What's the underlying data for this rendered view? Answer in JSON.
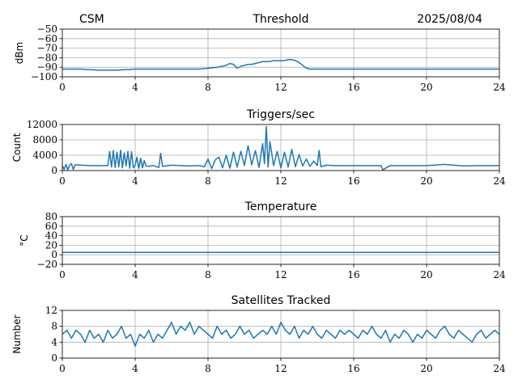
{
  "header": {
    "left_label": "CSM",
    "right_label": "2025/08/04"
  },
  "style": {
    "series_color": "#1f77b4"
  },
  "chart_data": [
    {
      "id": "threshold",
      "type": "line",
      "title": "Threshold",
      "xlabel": "",
      "ylabel": "dBm",
      "xlim": [
        0,
        24
      ],
      "ylim": [
        -100,
        -50
      ],
      "xticks": [
        0,
        4,
        8,
        12,
        16,
        20,
        24
      ],
      "yticks": [
        -100,
        -90,
        -80,
        -70,
        -60,
        -50
      ],
      "ytick_labels": [
        "−100",
        "−90",
        "−80",
        "−70",
        "−60",
        "−50"
      ],
      "grid": true,
      "series": [
        {
          "x": [
            0,
            1,
            2,
            3,
            4,
            5,
            6,
            7,
            7.5,
            8,
            8.5,
            9,
            9.2,
            9.4,
            9.6,
            9.8,
            10,
            10.2,
            10.4,
            10.6,
            10.8,
            11,
            11.2,
            11.4,
            11.6,
            11.8,
            12,
            12.2,
            12.4,
            12.6,
            12.8,
            13,
            13.2,
            13.4,
            13.6,
            14,
            15,
            16,
            17,
            18,
            19,
            20,
            21,
            22,
            23,
            24
          ],
          "y": [
            -92,
            -92,
            -93,
            -93,
            -92,
            -92,
            -92,
            -92,
            -92,
            -91,
            -90,
            -88,
            -86,
            -87,
            -91,
            -89,
            -88,
            -87,
            -87,
            -86,
            -85,
            -84,
            -84,
            -84,
            -83,
            -83,
            -83,
            -83,
            -82,
            -82,
            -83,
            -85,
            -88,
            -91,
            -92,
            -92,
            -92,
            -92,
            -92,
            -92,
            -92,
            -92,
            -92,
            -92,
            -92,
            -92
          ]
        }
      ]
    },
    {
      "id": "triggers",
      "type": "line",
      "title": "Triggers/sec",
      "xlabel": "",
      "ylabel": "Count",
      "xlim": [
        0,
        24
      ],
      "ylim": [
        0,
        12000
      ],
      "xticks": [
        0,
        4,
        8,
        12,
        16,
        20,
        24
      ],
      "yticks": [
        0,
        4000,
        8000,
        12000
      ],
      "ytick_labels": [
        "0",
        "4000",
        "8000",
        "12000"
      ],
      "grid": true,
      "series": [
        {
          "x": [
            0,
            0.1,
            0.2,
            0.3,
            0.4,
            0.5,
            0.6,
            0.7,
            1.5,
            2.5,
            2.6,
            2.7,
            2.8,
            2.9,
            3.0,
            3.1,
            3.2,
            3.3,
            3.4,
            3.5,
            3.6,
            3.7,
            3.8,
            3.9,
            4.0,
            4.1,
            4.2,
            4.3,
            4.4,
            4.5,
            4.6,
            4.7,
            5.0,
            5.3,
            5.4,
            5.5,
            5.8,
            6.0,
            6.5,
            7.0,
            7.5,
            7.8,
            8.0,
            8.2,
            8.4,
            8.6,
            8.8,
            9.0,
            9.2,
            9.4,
            9.6,
            9.8,
            10.0,
            10.2,
            10.4,
            10.6,
            10.8,
            11.0,
            11.1,
            11.2,
            11.3,
            11.4,
            11.6,
            11.8,
            12.0,
            12.2,
            12.4,
            12.6,
            12.8,
            13.0,
            13.2,
            13.4,
            13.6,
            13.8,
            14.0,
            14.1,
            14.2,
            14.5,
            15,
            16,
            17,
            17.5,
            17.6,
            18,
            19,
            20,
            21,
            22,
            23,
            24
          ],
          "y": [
            1300,
            300,
            1600,
            200,
            1400,
            1800,
            300,
            1500,
            1300,
            1300,
            5000,
            900,
            5200,
            800,
            4800,
            1000,
            5300,
            700,
            4600,
            1200,
            5000,
            600,
            4900,
            700,
            1400,
            3500,
            500,
            3200,
            700,
            2600,
            1200,
            1100,
            1300,
            800,
            4500,
            1100,
            1300,
            1400,
            1300,
            1200,
            1300,
            1000,
            3000,
            500,
            2800,
            3500,
            700,
            4000,
            600,
            4800,
            900,
            5000,
            1300,
            6500,
            1500,
            5200,
            800,
            7000,
            1800,
            11500,
            900,
            7500,
            1300,
            5000,
            700,
            4800,
            900,
            5500,
            1000,
            4200,
            1200,
            3000,
            1100,
            2500,
            1300,
            5200,
            1000,
            1400,
            1300,
            1300,
            1300,
            1300,
            200,
            1300,
            1300,
            1300,
            1600,
            1200,
            1300,
            1300
          ]
        }
      ]
    },
    {
      "id": "temperature",
      "type": "line",
      "title": "Temperature",
      "xlabel": "",
      "ylabel": "°C",
      "xlim": [
        0,
        24
      ],
      "ylim": [
        -20,
        80
      ],
      "xticks": [
        0,
        4,
        8,
        12,
        16,
        20,
        24
      ],
      "yticks": [
        -20,
        0,
        20,
        40,
        60,
        80
      ],
      "ytick_labels": [
        "−20",
        "0",
        "20",
        "40",
        "60",
        "80"
      ],
      "grid": true,
      "series": [
        {
          "x": [
            0,
            24
          ],
          "y": [
            5,
            5
          ]
        }
      ]
    },
    {
      "id": "satellites",
      "type": "line",
      "title": "Satellites Tracked",
      "xlabel": "",
      "ylabel": "Number",
      "xlim": [
        0,
        24
      ],
      "ylim": [
        0,
        12
      ],
      "xticks": [
        0,
        4,
        8,
        12,
        16,
        20,
        24
      ],
      "yticks": [
        0,
        4,
        8,
        12
      ],
      "ytick_labels": [
        "0",
        "4",
        "8",
        "12"
      ],
      "grid": true,
      "series": [
        {
          "x": [
            0,
            0.25,
            0.5,
            0.75,
            1,
            1.25,
            1.5,
            1.75,
            2,
            2.25,
            2.5,
            2.75,
            3,
            3.25,
            3.5,
            3.75,
            4,
            4.25,
            4.5,
            4.75,
            5,
            5.25,
            5.5,
            5.75,
            6,
            6.25,
            6.5,
            6.75,
            7,
            7.25,
            7.5,
            7.75,
            8,
            8.25,
            8.5,
            8.75,
            9,
            9.25,
            9.5,
            9.75,
            10,
            10.25,
            10.5,
            10.75,
            11,
            11.25,
            11.5,
            11.75,
            12,
            12.25,
            12.5,
            12.75,
            13,
            13.25,
            13.5,
            13.75,
            14,
            14.25,
            14.5,
            14.75,
            15,
            15.25,
            15.5,
            15.75,
            16,
            16.25,
            16.5,
            16.75,
            17,
            17.25,
            17.5,
            17.75,
            18,
            18.25,
            18.5,
            18.75,
            19,
            19.25,
            19.5,
            19.75,
            20,
            20.25,
            20.5,
            20.75,
            21,
            21.25,
            21.5,
            21.75,
            22,
            22.25,
            22.5,
            22.75,
            23,
            23.25,
            23.5,
            23.75,
            24
          ],
          "y": [
            6,
            7,
            5,
            7,
            6,
            4,
            7,
            5,
            6,
            4,
            7,
            5,
            6,
            8,
            5,
            6,
            3,
            6,
            5,
            7,
            4,
            6,
            5,
            7,
            9,
            6,
            8,
            7,
            9,
            6,
            8,
            7,
            6,
            5,
            8,
            6,
            7,
            5,
            6,
            8,
            6,
            7,
            5,
            6,
            7,
            6,
            8,
            6,
            9,
            7,
            6,
            8,
            5,
            7,
            6,
            8,
            6,
            5,
            7,
            6,
            5,
            7,
            6,
            7,
            6,
            5,
            7,
            6,
            8,
            6,
            5,
            7,
            4,
            6,
            5,
            7,
            6,
            4,
            6,
            5,
            7,
            6,
            5,
            7,
            8,
            6,
            5,
            7,
            6,
            5,
            4,
            6,
            7,
            5,
            6,
            7,
            6
          ]
        }
      ]
    }
  ]
}
